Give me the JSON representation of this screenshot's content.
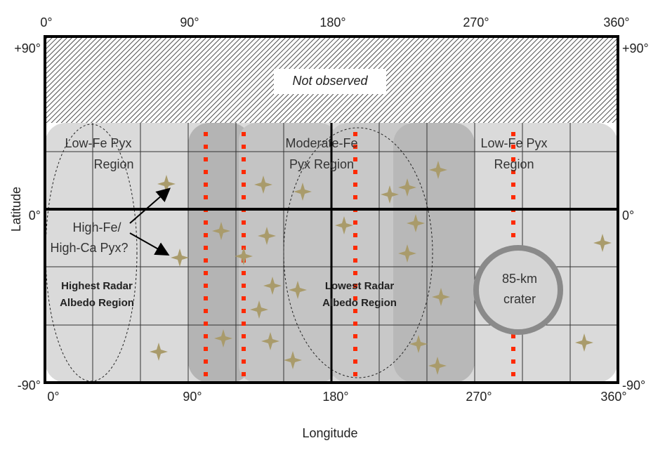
{
  "axes": {
    "top_ticks": [
      "0°",
      "90°",
      "180°",
      "270°",
      "360°"
    ],
    "bottom_ticks": [
      "0°",
      "90°",
      "180°",
      "270°",
      "360°"
    ],
    "left_ticks": [
      "+90°",
      "0°",
      "-90°"
    ],
    "right_ticks": [
      "+90°",
      "0°",
      "-90°"
    ],
    "x_label": "Longitude",
    "y_label": "Latitude"
  },
  "labels": {
    "not_observed": "Not observed",
    "low_fe_west": [
      "Low-Fe Pyx",
      "Region"
    ],
    "moderate_fe": [
      "Moderate-Fe",
      "Pyx Region"
    ],
    "low_fe_east": [
      "Low-Fe Pyx",
      "Region"
    ],
    "high_fe": [
      "High-Fe/",
      "High-Ca Pyx?"
    ],
    "highest_radar": [
      "Highest Radar",
      "Albedo Region"
    ],
    "lowest_radar": [
      "Lowest Radar",
      "Albedo Region"
    ],
    "crater": [
      "85-km",
      "crater"
    ]
  }
}
